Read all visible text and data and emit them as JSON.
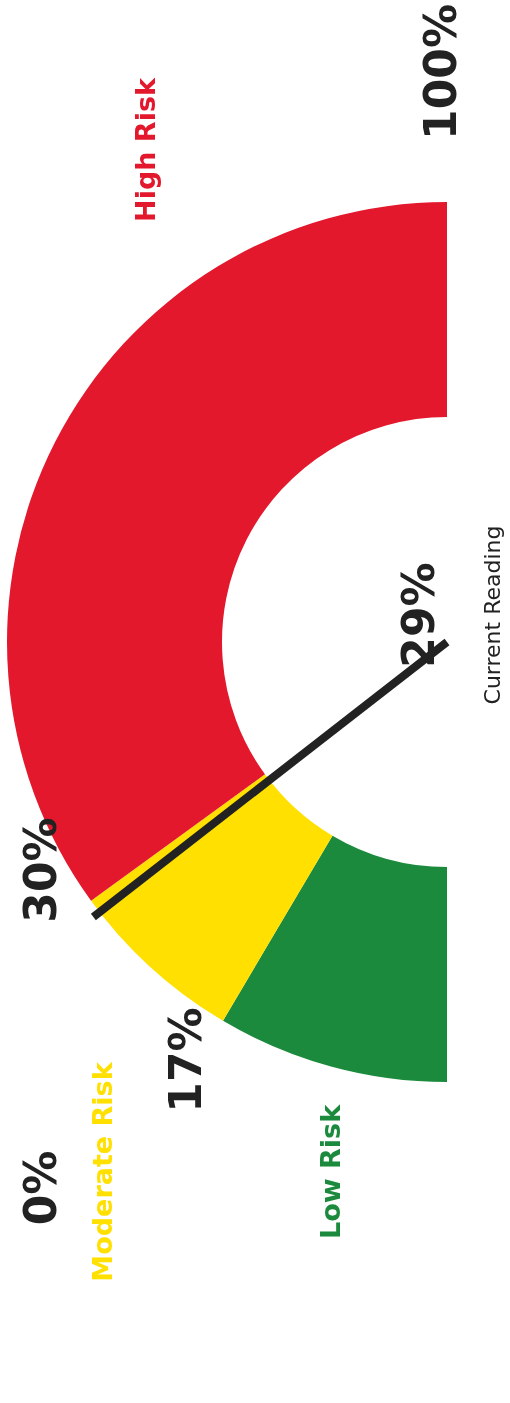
{
  "chart_data": {
    "type": "donut",
    "categories": [
      "Low Risk",
      "Moderate Risk",
      "High Risk"
    ],
    "values": [
      17,
      13,
      70
    ],
    "colors": [
      "#1b8a3c",
      "#ffe000",
      "#e3182d"
    ],
    "needle": "Moderate Risk",
    "legend": false,
    "annotations": [
      "0%",
      "17%",
      "30%",
      "100%",
      "29%",
      "Current Reading"
    ]
  }
}
